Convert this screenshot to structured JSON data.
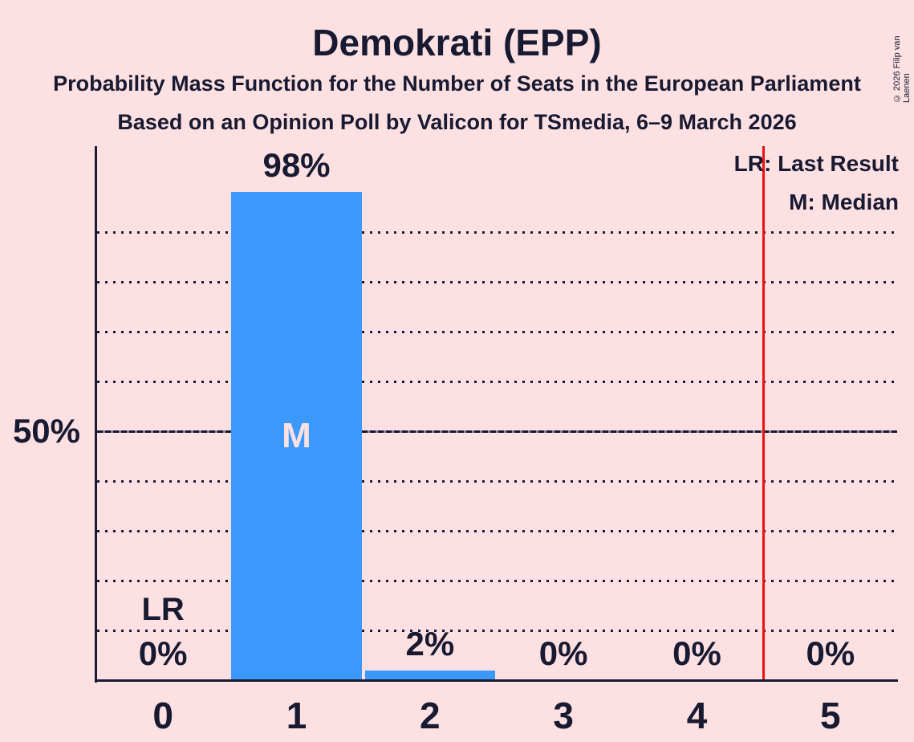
{
  "meta": {
    "copyright": "© 2026 Filip van Laenen"
  },
  "header": {
    "title": "Demokrati (EPP)",
    "subtitle1": "Probability Mass Function for the Number of Seats in the European Parliament",
    "subtitle2": "Based on an Opinion Poll by Valicon for TSmedia, 6–9 March 2026"
  },
  "legend": {
    "lr": "LR: Last Result",
    "m": "M: Median"
  },
  "chart_data": {
    "type": "bar",
    "title": "Demokrati (EPP)",
    "categories": [
      "0",
      "1",
      "2",
      "3",
      "4",
      "5"
    ],
    "values": [
      0,
      98,
      2,
      0,
      0,
      0
    ],
    "value_labels": [
      "0%",
      "98%",
      "2%",
      "0%",
      "0%",
      "0%"
    ],
    "xlabel": "",
    "ylabel": "",
    "y_tick_label": "50%",
    "y_tick_pct": 50,
    "ylim": [
      0,
      107
    ],
    "gridlines_pct": [
      10,
      20,
      30,
      40,
      50,
      60,
      70,
      80,
      90
    ],
    "solid_gridline_pct": 50,
    "grid": "dotted horizontal",
    "median_marker": "M",
    "median_category_index": 1,
    "last_result_marker": "LR",
    "last_result_category_index": 0,
    "red_line_x": 4.5,
    "legend_entries": [
      "LR: Last Result",
      "M: Median"
    ],
    "legend_position": "top-right"
  },
  "colors": {
    "background": "#fde1e2",
    "bar": "#3b99fc",
    "text": "#181a32",
    "grid_gap": "#80819b",
    "red_line": "#ee1111"
  }
}
